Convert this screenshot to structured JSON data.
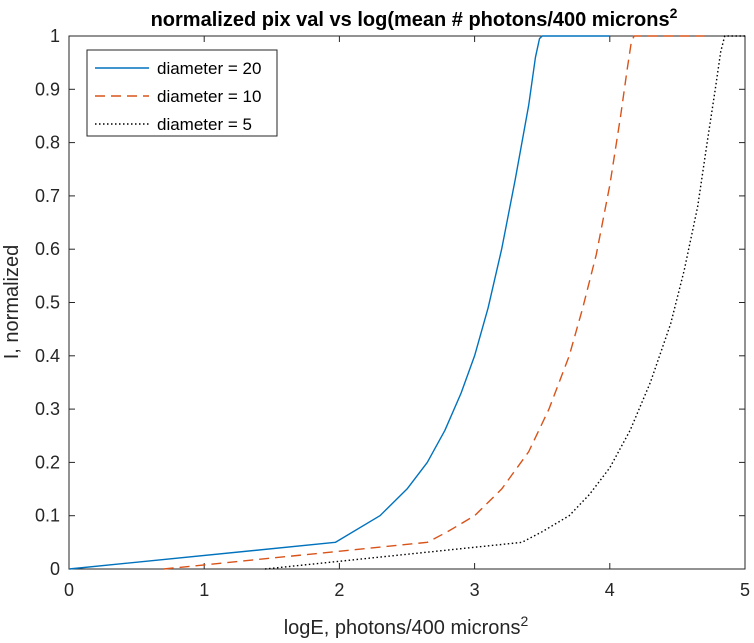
{
  "chart_data": {
    "type": "line",
    "title": "normalized pix val vs log(mean # photons/400 microns",
    "title_superscript": "2",
    "xlabel": "logE, photons/400 microns",
    "xlabel_superscript": "2",
    "ylabel": "I, normalized",
    "xlim": [
      0,
      5
    ],
    "ylim": [
      0,
      1
    ],
    "x_ticks": [
      0,
      1,
      2,
      3,
      4,
      5
    ],
    "x_tick_labels": [
      "0",
      "1",
      "2",
      "3",
      "4",
      "5"
    ],
    "y_ticks": [
      0,
      0.1,
      0.2,
      0.3,
      0.4,
      0.5,
      0.6,
      0.7,
      0.8,
      0.9,
      1
    ],
    "y_tick_labels": [
      "0",
      "0.1",
      "0.2",
      "0.3",
      "0.4",
      "0.5",
      "0.6",
      "0.7",
      "0.8",
      "0.9",
      "1"
    ],
    "grid": false,
    "legend_position": "top-left",
    "series": [
      {
        "name": "diameter = 20",
        "color": "#0072BD",
        "line_style": "solid",
        "x": [
          0,
          1.97,
          2.3,
          2.5,
          2.65,
          2.78,
          2.9,
          3.0,
          3.1,
          3.2,
          3.3,
          3.4,
          3.45,
          3.48,
          3.5,
          4.0
        ],
        "y": [
          0,
          0.05,
          0.1,
          0.15,
          0.2,
          0.26,
          0.33,
          0.4,
          0.49,
          0.6,
          0.73,
          0.87,
          0.96,
          0.995,
          1,
          1
        ]
      },
      {
        "name": "diameter = 10",
        "color": "#D95319",
        "line_style": "dashed",
        "x": [
          0.7,
          2.65,
          2.8,
          3.0,
          3.2,
          3.4,
          3.55,
          3.7,
          3.8,
          3.9,
          4.0,
          4.08,
          4.13,
          4.16,
          4.18,
          4.7
        ],
        "y": [
          0,
          0.05,
          0.07,
          0.1,
          0.15,
          0.22,
          0.3,
          0.4,
          0.49,
          0.59,
          0.72,
          0.85,
          0.94,
          0.99,
          1,
          1
        ]
      },
      {
        "name": "diameter = 5",
        "color": "#000000",
        "line_style": "dotted",
        "x": [
          1.45,
          3.35,
          3.5,
          3.7,
          3.85,
          4.0,
          4.15,
          4.3,
          4.45,
          4.55,
          4.65,
          4.72,
          4.78,
          4.82,
          4.85,
          5.0
        ],
        "y": [
          0,
          0.05,
          0.07,
          0.1,
          0.14,
          0.19,
          0.26,
          0.35,
          0.46,
          0.56,
          0.68,
          0.8,
          0.9,
          0.97,
          1,
          1
        ]
      }
    ]
  }
}
